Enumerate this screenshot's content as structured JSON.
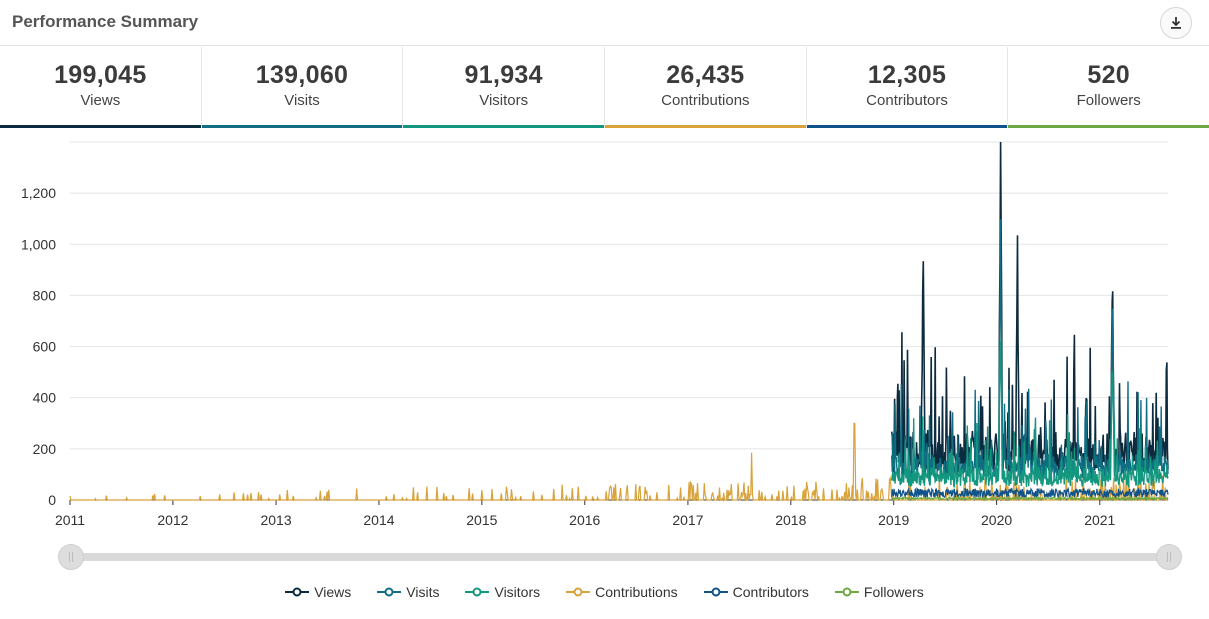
{
  "header": {
    "title": "Performance Summary",
    "download_icon": "download-icon"
  },
  "stats": [
    {
      "value": "199,045",
      "label": "Views",
      "color": "#0d2b3e"
    },
    {
      "value": "139,060",
      "label": "Visits",
      "color": "#0f6e82"
    },
    {
      "value": "91,934",
      "label": "Visitors",
      "color": "#13977f"
    },
    {
      "value": "26,435",
      "label": "Contributions",
      "color": "#d9a23a"
    },
    {
      "value": "12,305",
      "label": "Contributors",
      "color": "#10538a"
    },
    {
      "value": "520",
      "label": "Followers",
      "color": "#6ea842"
    }
  ],
  "chart_data": {
    "type": "line",
    "x_ticks": [
      "2011",
      "2012",
      "2013",
      "2014",
      "2015",
      "2016",
      "2017",
      "2018",
      "2019",
      "2020",
      "2021"
    ],
    "y_ticks": [
      "0",
      "200",
      "400",
      "600",
      "800",
      "1,000",
      "1,200"
    ],
    "xlim": [
      "2011-01-01",
      "2021-08-31"
    ],
    "ylim": [
      0,
      1400
    ],
    "grid": true,
    "legend_position": "bottom",
    "series": [
      {
        "name": "Views",
        "color": "#0d2b3e",
        "approx_peaks": [
          {
            "date": "2019-04",
            "value": 950
          },
          {
            "date": "2020-01",
            "value": 1290
          },
          {
            "date": "2020-03",
            "value": 920
          },
          {
            "date": "2021-02",
            "value": 860
          }
        ]
      },
      {
        "name": "Visits",
        "color": "#0f6e82",
        "approx_peaks": [
          {
            "date": "2020-01",
            "value": 980
          },
          {
            "date": "2021-02",
            "value": 760
          }
        ]
      },
      {
        "name": "Visitors",
        "color": "#13977f",
        "approx_peaks": [
          {
            "date": "2020-01",
            "value": 700
          },
          {
            "date": "2021-02",
            "value": 560
          }
        ]
      },
      {
        "name": "Contributions",
        "color": "#d9a23a",
        "approx_peaks": [
          {
            "date": "2017-08",
            "value": 185
          },
          {
            "date": "2018-08",
            "value": 300
          }
        ]
      },
      {
        "name": "Contributors",
        "color": "#10538a",
        "approx_peaks": [
          {
            "date": "2020-02",
            "value": 60
          }
        ]
      },
      {
        "name": "Followers",
        "color": "#6ea842",
        "approx_peaks": [
          {
            "date": "2020-06",
            "value": 10
          }
        ]
      }
    ]
  }
}
